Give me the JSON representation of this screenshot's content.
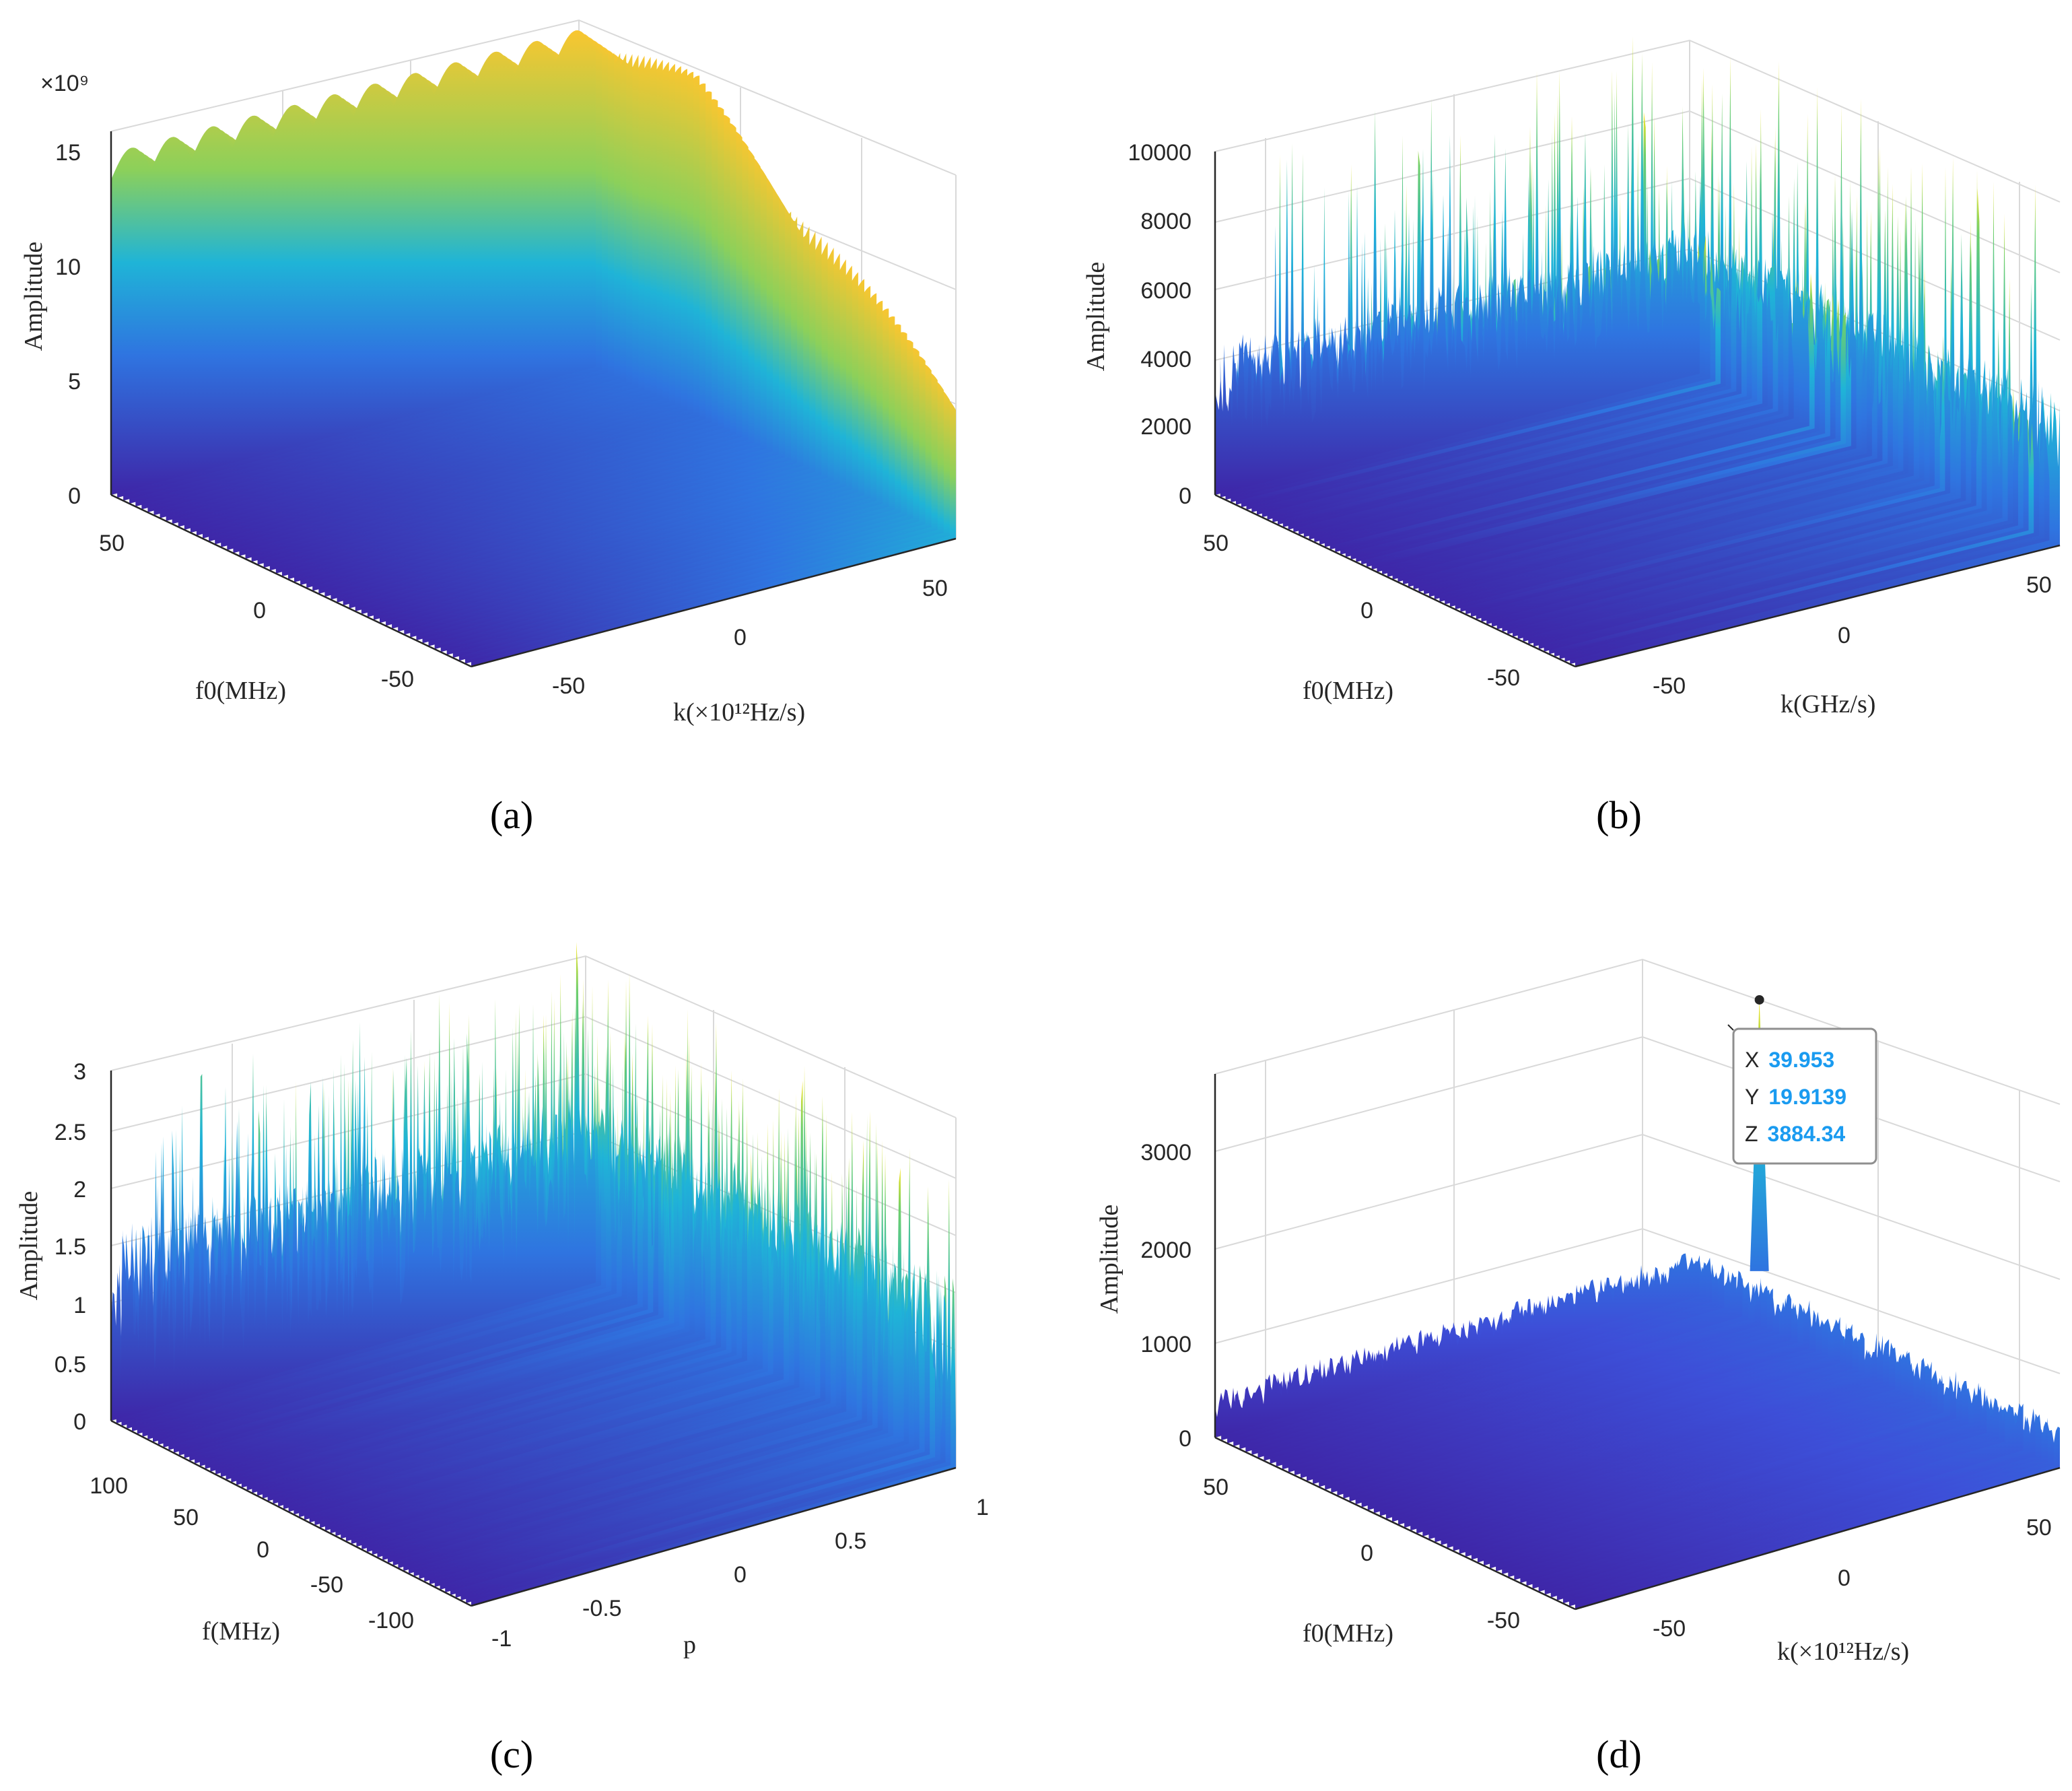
{
  "figure": {
    "panels": [
      "(a)",
      "(b)",
      "(c)",
      "(d)"
    ]
  },
  "colors": {
    "colormap_low": "#3e26a8",
    "colormap_mid": "#1fb4d7",
    "colormap_high": "#f9e51e",
    "axis": "#262626",
    "grid": "#d9d9d9",
    "datatip_value": "#1a9bf0"
  },
  "chart_data": [
    {
      "panel": "(a)",
      "type": "surface",
      "zlabel": "Amplitude",
      "xlabel": "k(×10¹²Hz/s)",
      "ylabel": "f0(MHz)",
      "z_exponent_label": "×10⁹",
      "z_ticks": [
        "0",
        "5",
        "10",
        "15"
      ],
      "zlim": [
        0,
        15
      ],
      "x_ticks": [
        "-50",
        "0",
        "50"
      ],
      "y_ticks": [
        "50",
        "0",
        "-50"
      ],
      "description_values": {
        "baseline_front": 6,
        "plateau": 14,
        "ripple_period_k": 10
      }
    },
    {
      "panel": "(b)",
      "type": "surface",
      "zlabel": "Amplitude",
      "xlabel": "k(GHz/s)",
      "ylabel": "f0(MHz)",
      "z_ticks": [
        "0",
        "2000",
        "4000",
        "6000",
        "8000",
        "10000"
      ],
      "zlim": [
        0,
        10000
      ],
      "x_ticks": [
        "-50",
        "0",
        "50"
      ],
      "y_ticks": [
        "50",
        "0",
        "-50"
      ],
      "description_values": {
        "noise_mean": 3500,
        "max_peak": 11000
      }
    },
    {
      "panel": "(c)",
      "type": "surface",
      "zlabel": "Amplitude",
      "xlabel": "p",
      "ylabel": "f(MHz)",
      "z_ticks": [
        "0",
        "0.5",
        "1",
        "1.5",
        "2",
        "2.5",
        "3"
      ],
      "zlim": [
        0,
        3
      ],
      "x_ticks": [
        "-1",
        "-0.5",
        "0",
        "0.5",
        "1"
      ],
      "y_ticks": [
        "100",
        "50",
        "0",
        "-50",
        "-100"
      ],
      "description_values": {
        "noise_mean": 1.2,
        "max_peak": 3.0
      }
    },
    {
      "panel": "(d)",
      "type": "surface",
      "zlabel": "Amplitude",
      "xlabel": "k(×10¹²Hz/s)",
      "ylabel": "f0(MHz)",
      "z_ticks": [
        "0",
        "1000",
        "2000",
        "3000"
      ],
      "zlim": [
        0,
        3900
      ],
      "x_ticks": [
        "-50",
        "0",
        "50"
      ],
      "y_ticks": [
        "50",
        "0",
        "-50"
      ],
      "peak": {
        "x": 39.953,
        "y": 19.9139,
        "z": 3884.34
      },
      "datatip": {
        "x_key": "X",
        "x_val": "39.953",
        "y_key": "Y",
        "y_val": "19.9139",
        "z_key": "Z",
        "z_val": "3884.34"
      },
      "description_values": {
        "noise_mean": 400
      }
    }
  ]
}
